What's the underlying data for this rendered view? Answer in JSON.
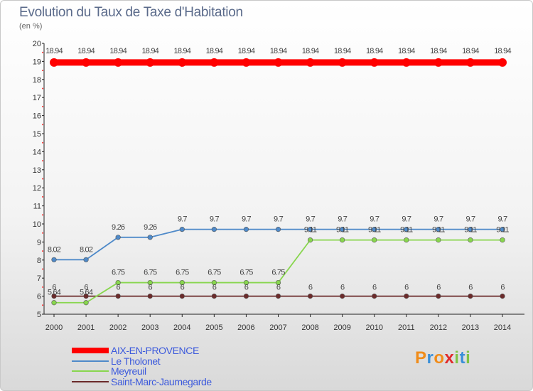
{
  "header": {
    "title": "Evolution du Taux de Taxe d'Habitation",
    "subtitle": "(en %)"
  },
  "chart_data": {
    "type": "line",
    "title": "Evolution du Taux de Taxe d'Habitation",
    "ylabel": "(en %)",
    "xlabel": "",
    "ylim": [
      5,
      20
    ],
    "yticks": [
      5,
      6,
      7,
      8,
      9,
      10,
      11,
      12,
      13,
      14,
      15,
      16,
      17,
      18,
      19,
      20
    ],
    "grid": false,
    "legend_position": "bottom-left",
    "x": [
      "2000",
      "2001",
      "2002",
      "2003",
      "2004",
      "2005",
      "2006",
      "2007",
      "2008",
      "2009",
      "2010",
      "2011",
      "2012",
      "2013",
      "2014"
    ],
    "series": [
      {
        "name": "AIX-EN-PROVENCE",
        "color": "#ff0000",
        "values": [
          18.94,
          18.94,
          18.94,
          18.94,
          18.94,
          18.94,
          18.94,
          18.94,
          18.94,
          18.94,
          18.94,
          18.94,
          18.94,
          18.94,
          18.94
        ],
        "labels": [
          "18.94",
          "18.94",
          "18.94",
          "18.94",
          "18.94",
          "18.94",
          "18.94",
          "18.94",
          "18.94",
          "18.94",
          "18.94",
          "18.94",
          "18.94",
          "18.94",
          "18.94"
        ]
      },
      {
        "name": "Le Tholonet",
        "color": "#4f8ac9",
        "values": [
          8.02,
          8.02,
          9.26,
          9.26,
          9.7,
          9.7,
          9.7,
          9.7,
          9.7,
          9.7,
          9.7,
          9.7,
          9.7,
          9.7,
          9.7
        ],
        "labels": [
          "8.02",
          "8.02",
          "9.26",
          "9.26",
          "9.7",
          "9.7",
          "9.7",
          "9.7",
          "9.7",
          "9.7",
          "9.7",
          "9.7",
          "9.7",
          "9.7",
          "9.7"
        ]
      },
      {
        "name": "Meyreuil",
        "color": "#88d64e",
        "values": [
          5.64,
          5.64,
          6.75,
          6.75,
          6.75,
          6.75,
          6.75,
          6.75,
          9.11,
          9.11,
          9.11,
          9.11,
          9.11,
          9.11,
          9.11
        ],
        "labels": [
          "5.64",
          "5.64",
          "6.75",
          "6.75",
          "6.75",
          "6.75",
          "6.75",
          "6.75",
          "9.11",
          "9.11",
          "9.11",
          "9.11",
          "9.11",
          "9.11",
          "9.11"
        ]
      },
      {
        "name": "Saint-Marc-Jaumegarde",
        "color": "#6b2a2a",
        "values": [
          6,
          6,
          6,
          6,
          6,
          6,
          6,
          6,
          6,
          6,
          6,
          6,
          6,
          6,
          6
        ],
        "labels": [
          "6",
          "6",
          "6",
          "6",
          "6",
          "6",
          "6",
          "6",
          "6",
          "6",
          "6",
          "6",
          "6",
          "6",
          "6"
        ]
      }
    ]
  },
  "legend": {
    "items": [
      {
        "label": "AIX-EN-PROVENCE",
        "color": "#ff0000"
      },
      {
        "label": "Le Tholonet",
        "color": "#4f8ac9"
      },
      {
        "label": "Meyreuil",
        "color": "#88d64e"
      },
      {
        "label": "Saint-Marc-Jaumegarde",
        "color": "#6b2a2a"
      }
    ]
  },
  "logo": {
    "letters": [
      "P",
      "r",
      "o",
      "x",
      "i",
      "t",
      "i"
    ],
    "colors": [
      "#f08c1a",
      "#3a8fd8",
      "#f08c1a",
      "#e02a2a",
      "#7fc243",
      "#3a8fd8",
      "#7fc243"
    ]
  }
}
